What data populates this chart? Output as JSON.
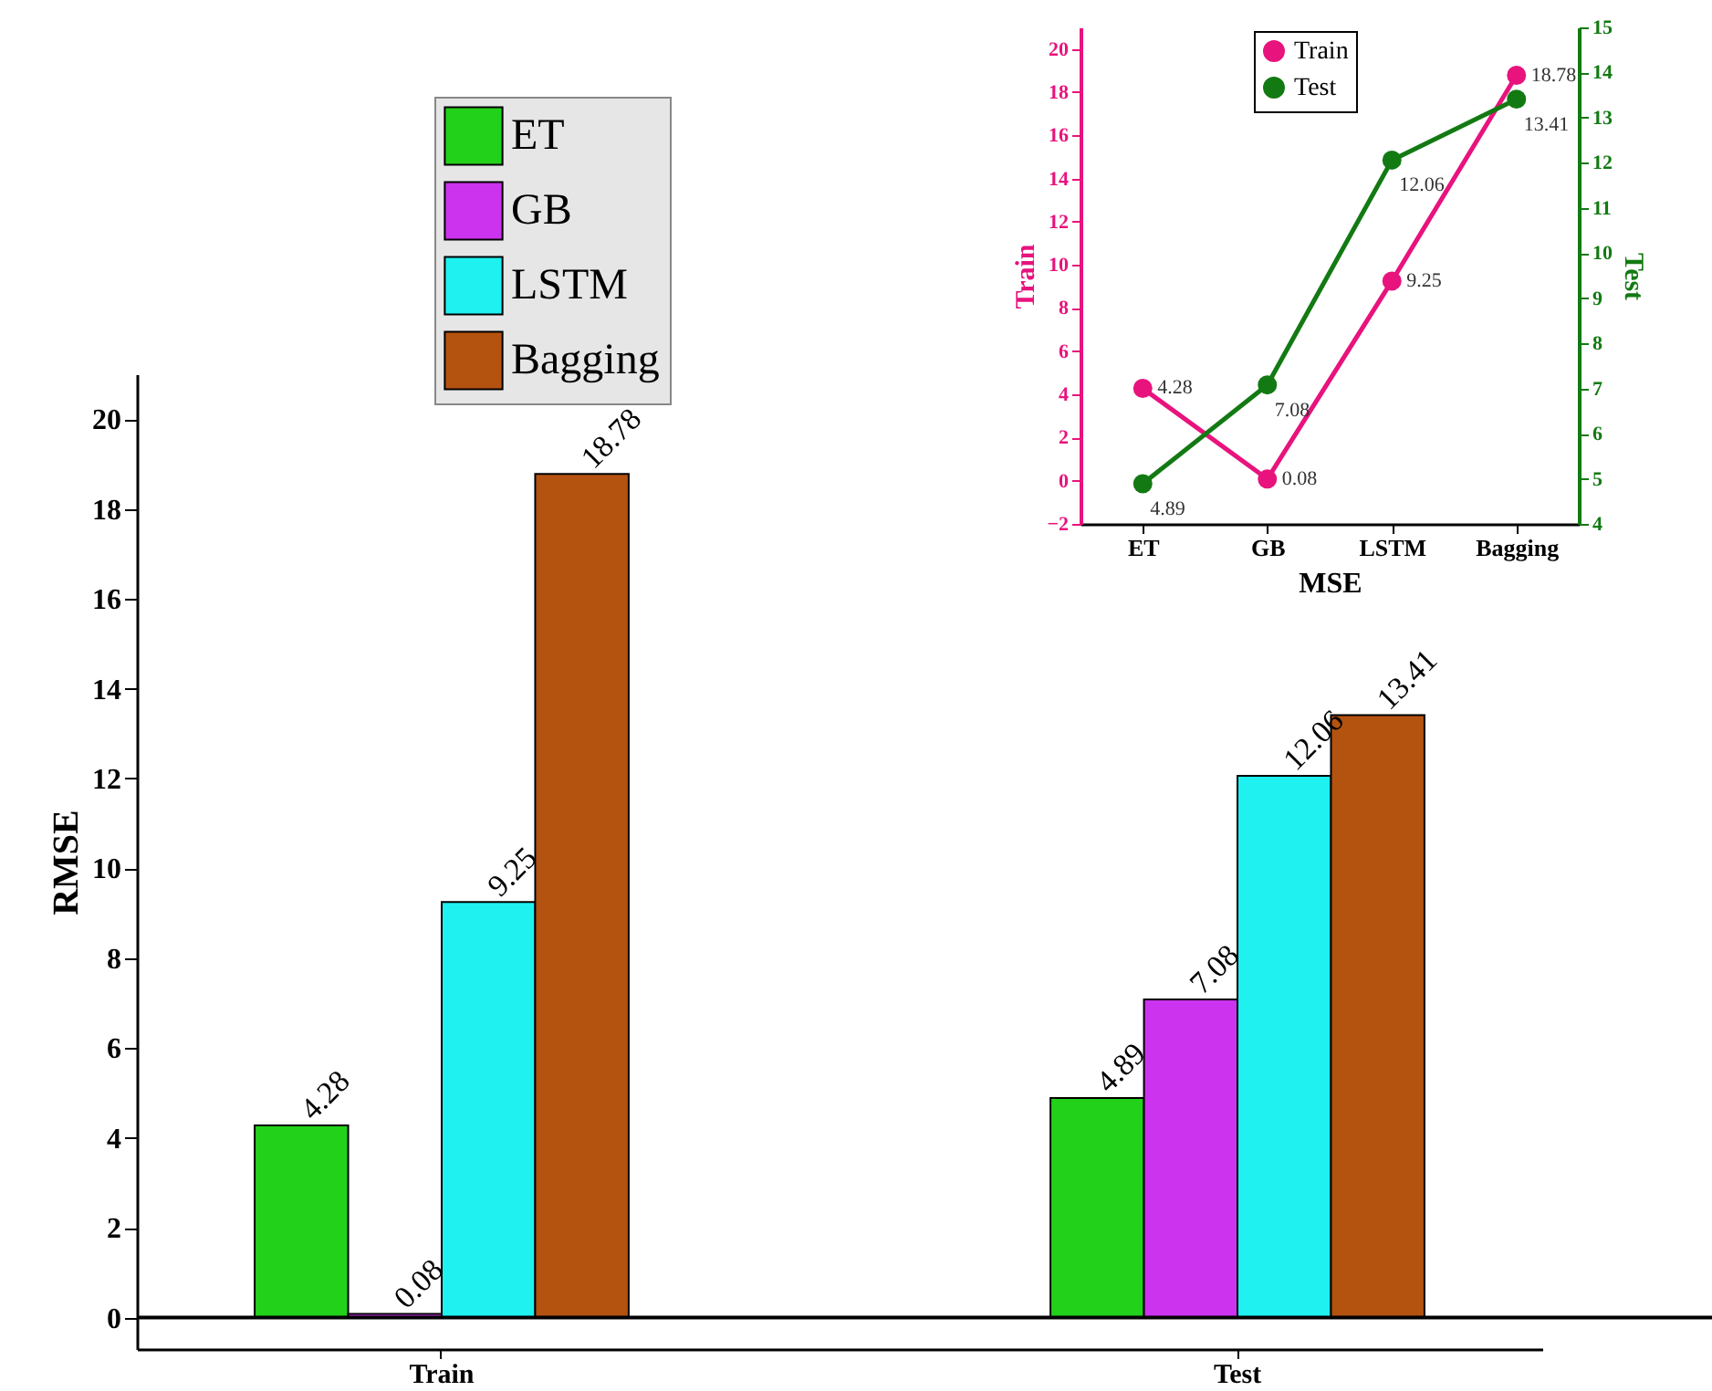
{
  "chart_data": [
    {
      "type": "bar",
      "categories": [
        "Train",
        "Test"
      ],
      "ylabel": "RMSE",
      "ylim": [
        -0.7,
        21
      ],
      "yticks": [
        0,
        2,
        4,
        6,
        8,
        10,
        12,
        14,
        16,
        18,
        20
      ],
      "data_labels": true,
      "legend": "top left",
      "ref_lines": [
        {
          "axis": "y",
          "value": 0,
          "color": "#000000"
        }
      ],
      "series": [
        {
          "name": "ET",
          "color": "#22d11a",
          "values": [
            4.28,
            4.89
          ]
        },
        {
          "name": "GB",
          "color": "#cc33ee",
          "values": [
            0.08,
            7.08
          ]
        },
        {
          "name": "LSTM",
          "color": "#1ff0f0",
          "values": [
            9.25,
            12.06
          ]
        },
        {
          "name": "Bagging",
          "color": "#b4520f",
          "values": [
            18.78,
            13.41
          ]
        }
      ]
    },
    {
      "type": "line",
      "categories": [
        "ET",
        "GB",
        "LSTM",
        "Bagging"
      ],
      "xlabel": "MSE",
      "ylabel": "Train",
      "y2label": "Test",
      "ylim": [
        -2,
        21
      ],
      "yticks": [
        -2,
        0,
        2,
        4,
        6,
        8,
        10,
        12,
        14,
        16,
        18,
        20
      ],
      "y2lim": [
        4,
        15
      ],
      "y2ticks": [
        4,
        5,
        6,
        7,
        8,
        9,
        10,
        11,
        12,
        13,
        14,
        15
      ],
      "marker": "circle",
      "legend": "top",
      "data_labels": true,
      "series": [
        {
          "name": "Train",
          "color": "#e8137d",
          "values": [
            4.28,
            0.08,
            9.25,
            18.78
          ]
        },
        {
          "name": "Test",
          "color": "#137a13",
          "axis": "y2",
          "values": [
            4.89,
            7.08,
            12.06,
            13.41
          ]
        }
      ]
    }
  ]
}
